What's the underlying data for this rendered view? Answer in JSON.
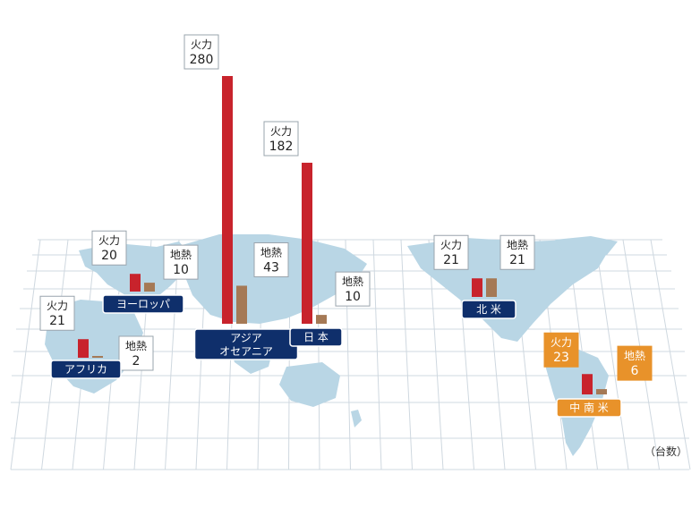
{
  "unit_label": "（台数）",
  "colors": {
    "thermal": "#c8232c",
    "geothermal": "#a57955",
    "region_label": "#0f2f6b",
    "region_label_highlight": "#e8922a",
    "map_land": "#b9d6e5",
    "grid": "#cfd8e0"
  },
  "chart_data": {
    "type": "bar",
    "categories": [
      "ヨーロッパ",
      "アフリカ",
      "アジア オセアニア",
      "日本",
      "北米",
      "中南米"
    ],
    "series": [
      {
        "name": "火力",
        "values": [
          20,
          21,
          280,
          182,
          21,
          23
        ]
      },
      {
        "name": "地熱",
        "values": [
          10,
          2,
          43,
          10,
          21,
          6
        ]
      }
    ],
    "regions": [
      {
        "name": [
          "ヨーロッパ"
        ],
        "highlight": false
      },
      {
        "name": [
          "アフリカ"
        ],
        "highlight": false
      },
      {
        "name": [
          "アジア",
          "オセアニア"
        ],
        "highlight": false
      },
      {
        "name": [
          "日 本"
        ],
        "highlight": false
      },
      {
        "name": [
          "北 米"
        ],
        "highlight": false
      },
      {
        "name": [
          "中 南 米"
        ],
        "highlight": true
      }
    ]
  }
}
